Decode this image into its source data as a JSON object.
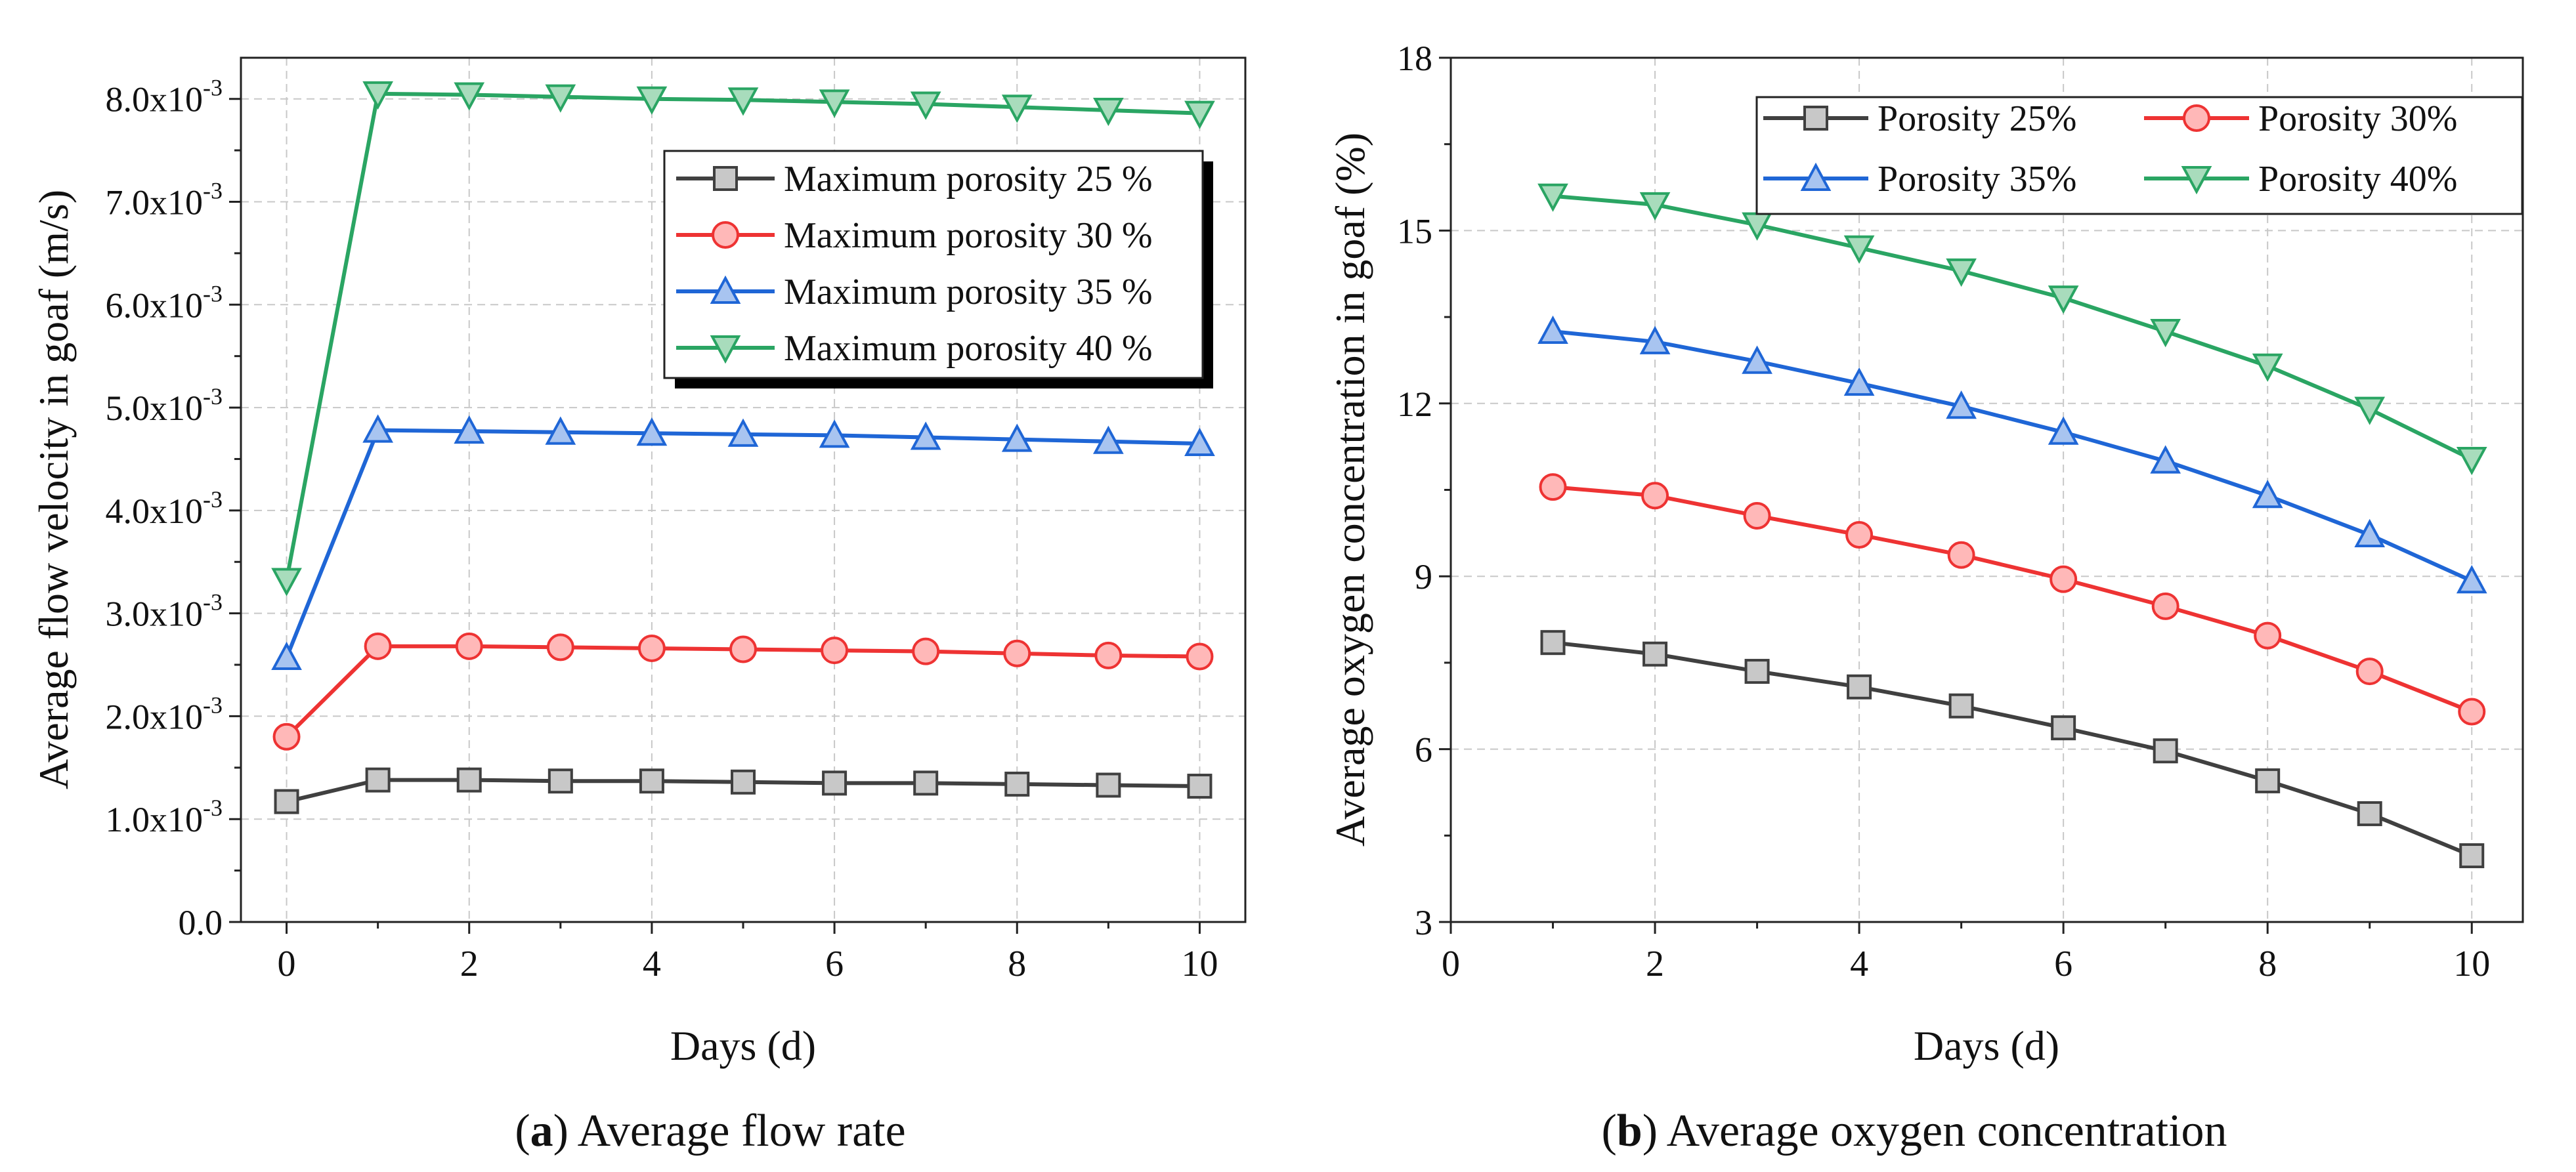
{
  "chart_data": [
    {
      "type": "line",
      "title": "",
      "caption_letter": "a",
      "caption_text": " Average flow rate",
      "xlabel": "Days (d)",
      "ylabel": "Average flow velocity in goaf (m/s)",
      "xlim": [
        -0.5,
        10.5
      ],
      "ylim": [
        0,
        0.0084
      ],
      "xticks": [
        0,
        2,
        4,
        6,
        8,
        10
      ],
      "xtick_labels": [
        "0",
        "2",
        "4",
        "6",
        "8",
        "10"
      ],
      "yticks": [
        0,
        0.001,
        0.002,
        0.003,
        0.004,
        0.005,
        0.006,
        0.007,
        0.008
      ],
      "ytick_labels": [
        {
          "mant": "0.0",
          "exp": ""
        },
        {
          "mant": "1.0x10",
          "exp": "-3"
        },
        {
          "mant": "2.0x10",
          "exp": "-3"
        },
        {
          "mant": "3.0x10",
          "exp": "-3"
        },
        {
          "mant": "4.0x10",
          "exp": "-3"
        },
        {
          "mant": "5.0x10",
          "exp": "-3"
        },
        {
          "mant": "6.0x10",
          "exp": "-3"
        },
        {
          "mant": "7.0x10",
          "exp": "-3"
        },
        {
          "mant": "8.0x10",
          "exp": "-3"
        }
      ],
      "grid": true,
      "legend_position": "top-right",
      "legend_columns": 1,
      "x": [
        0,
        1,
        2,
        3,
        4,
        5,
        6,
        7,
        8,
        9,
        10
      ],
      "series": [
        {
          "name": "Maximum porosity 25 %",
          "marker": "square",
          "color": "#404040",
          "fill": "#c8c8c8",
          "values": [
            0.00117,
            0.00138,
            0.00138,
            0.00137,
            0.00137,
            0.00136,
            0.00135,
            0.00135,
            0.00134,
            0.00133,
            0.00132
          ]
        },
        {
          "name": "Maximum porosity 30 %",
          "marker": "circle",
          "color": "#ee3333",
          "fill": "#ffb8b8",
          "values": [
            0.0018,
            0.00268,
            0.00268,
            0.00267,
            0.00266,
            0.00265,
            0.00264,
            0.00263,
            0.00261,
            0.00259,
            0.00258
          ]
        },
        {
          "name": "Maximum porosity 35 %",
          "marker": "triangle-up",
          "color": "#1f66d6",
          "fill": "#a8c4f0",
          "values": [
            0.00257,
            0.00478,
            0.00477,
            0.00476,
            0.00475,
            0.00474,
            0.00473,
            0.00471,
            0.00469,
            0.00467,
            0.00465
          ]
        },
        {
          "name": "Maximum porosity 40 %",
          "marker": "triangle-down",
          "color": "#2aa563",
          "fill": "#a8dcbc",
          "values": [
            0.00332,
            0.00805,
            0.00804,
            0.00802,
            0.008,
            0.00799,
            0.00797,
            0.00795,
            0.00792,
            0.00789,
            0.00786
          ]
        }
      ]
    },
    {
      "type": "line",
      "title": "",
      "caption_letter": "b",
      "caption_text": " Average oxygen concentration",
      "xlabel": "Days (d)",
      "ylabel": "Average oxygen concentration in goaf (%)",
      "xlim": [
        0,
        10.5
      ],
      "ylim": [
        3,
        18
      ],
      "xticks": [
        0,
        2,
        4,
        6,
        8,
        10
      ],
      "xtick_labels": [
        "0",
        "2",
        "4",
        "6",
        "8",
        "10"
      ],
      "yticks": [
        3,
        6,
        9,
        12,
        15,
        18
      ],
      "ytick_labels": [
        {
          "mant": "3",
          "exp": ""
        },
        {
          "mant": "6",
          "exp": ""
        },
        {
          "mant": "9",
          "exp": ""
        },
        {
          "mant": "12",
          "exp": ""
        },
        {
          "mant": "15",
          "exp": ""
        },
        {
          "mant": "18",
          "exp": ""
        }
      ],
      "grid": true,
      "legend_position": "top-right",
      "legend_columns": 2,
      "x": [
        1,
        2,
        3,
        4,
        5,
        6,
        7,
        8,
        9,
        10
      ],
      "series": [
        {
          "name": "Porosity 25%",
          "marker": "square",
          "color": "#404040",
          "fill": "#c8c8c8",
          "values": [
            7.85,
            7.65,
            7.35,
            7.08,
            6.75,
            6.37,
            5.97,
            5.45,
            4.88,
            4.15
          ]
        },
        {
          "name": "Porosity 30%",
          "marker": "circle",
          "color": "#ee3333",
          "fill": "#ffb8b8",
          "values": [
            10.55,
            10.4,
            10.05,
            9.72,
            9.37,
            8.95,
            8.48,
            7.97,
            7.35,
            6.65
          ]
        },
        {
          "name": "Porosity 35%",
          "marker": "triangle-up",
          "color": "#1f66d6",
          "fill": "#a8c4f0",
          "values": [
            13.25,
            13.07,
            12.73,
            12.35,
            11.95,
            11.5,
            11.0,
            10.4,
            9.72,
            8.92
          ]
        },
        {
          "name": "Porosity 40%",
          "marker": "triangle-down",
          "color": "#2aa563",
          "fill": "#a8dcbc",
          "values": [
            15.6,
            15.45,
            15.1,
            14.7,
            14.3,
            13.83,
            13.25,
            12.65,
            11.9,
            11.03
          ]
        }
      ]
    }
  ]
}
